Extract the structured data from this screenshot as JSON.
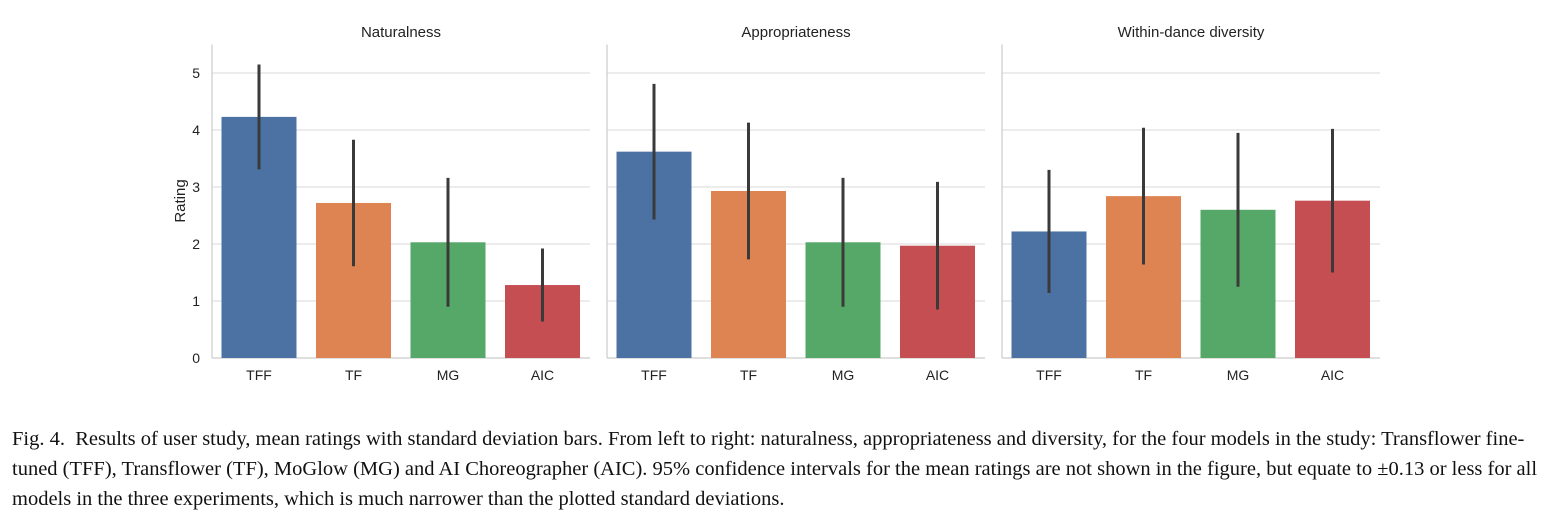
{
  "chart_data": [
    {
      "type": "bar",
      "title": "Naturalness",
      "ylabel": "Rating",
      "categories": [
        "TFF",
        "TF",
        "MG",
        "AIC"
      ],
      "values": [
        4.23,
        2.72,
        2.03,
        1.28
      ],
      "std": [
        0.92,
        1.11,
        1.13,
        0.64
      ],
      "ylim": [
        0,
        5.5
      ],
      "yticks": [
        "0",
        "1",
        "2",
        "3",
        "4",
        "5"
      ],
      "grid": true
    },
    {
      "type": "bar",
      "title": "Appropriateness",
      "ylabel": "",
      "categories": [
        "TFF",
        "TF",
        "MG",
        "AIC"
      ],
      "values": [
        3.62,
        2.93,
        2.03,
        1.97
      ],
      "std": [
        1.19,
        1.2,
        1.13,
        1.12
      ],
      "ylim": [
        0,
        5.5
      ],
      "yticks": [],
      "grid": true
    },
    {
      "type": "bar",
      "title": "Within-dance diversity",
      "ylabel": "",
      "categories": [
        "TFF",
        "TF",
        "MG",
        "AIC"
      ],
      "values": [
        2.22,
        2.84,
        2.6,
        2.76
      ],
      "std": [
        1.08,
        1.2,
        1.35,
        1.26
      ],
      "ylim": [
        0,
        5.5
      ],
      "yticks": [],
      "grid": true
    }
  ],
  "colors": [
    "#4c72a4",
    "#dd8452",
    "#55a868",
    "#c44e52"
  ],
  "caption": {
    "label": "Fig. 4.",
    "text": "Results of user study, mean ratings with standard deviation bars. From left to right: naturalness, appropriateness and diversity, for the four models in the study: Transflower fine-tuned (TFF), Transflower (TF), MoGlow (MG) and AI Choreographer (AIC). 95% confidence intervals for the mean ratings are not shown in the figure, but equate to ±0.13 or less for all models in the three experiments, which is much narrower than the plotted standard deviations."
  }
}
